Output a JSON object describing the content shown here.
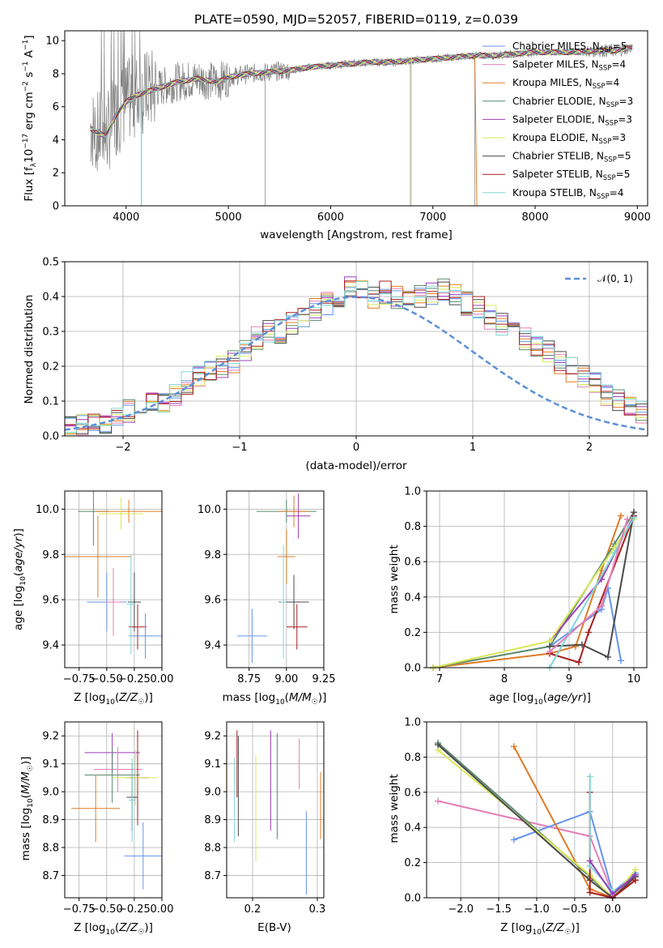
{
  "chart_data": [
    {
      "type": "line",
      "title": "PLATE=0590, MJD=52057, FIBERID=0119, z=0.039",
      "xlabel": "wavelength [Angstrom, rest frame]",
      "ylabel": "Flux [fλ10⁻¹⁷ erg cm⁻² s⁻¹ A⁻¹]",
      "xlim": [
        3400,
        9100
      ],
      "ylim": [
        0,
        10.6
      ],
      "xticks": [
        "4000",
        "5000",
        "6000",
        "7000",
        "8000",
        "9000"
      ],
      "yticks": [
        "0",
        "2",
        "4",
        "6",
        "8",
        "10"
      ],
      "observed_spectrum": {
        "color": "#808080",
        "x": [
          3650,
          3700,
          3800,
          3900,
          4000,
          4100,
          4200,
          4300,
          4400,
          4500,
          4600,
          4700,
          4800,
          4900,
          5000,
          5200,
          5400,
          5600,
          5800,
          6000,
          6200,
          6400,
          6600,
          6800,
          7000,
          7200,
          7400,
          7600,
          7800,
          8000,
          8200,
          8400,
          8600,
          8800,
          8950
        ],
        "y": [
          4.7,
          4.5,
          4.2,
          5.5,
          6.3,
          6.7,
          6.9,
          7.1,
          7.3,
          7.5,
          7.6,
          7.7,
          7.6,
          7.5,
          7.8,
          8.0,
          8.1,
          8.2,
          8.4,
          8.5,
          8.6,
          8.7,
          8.7,
          8.8,
          8.9,
          9.0,
          9.1,
          9.1,
          9.2,
          9.3,
          9.3,
          9.3,
          9.4,
          9.4,
          9.6
        ]
      },
      "series": [
        {
          "name": "Chabrier MILES, N_SSP=5",
          "color": "#6495ed"
        },
        {
          "name": "Salpeter MILES, N_SSP=4",
          "color": "#e57fb7"
        },
        {
          "name": "Kroupa MILES, N_SSP=4",
          "color": "#e07b24"
        },
        {
          "name": "Chabrier ELODIE, N_SSP=3",
          "color": "#5a8a6e"
        },
        {
          "name": "Salpeter ELODIE, N_SSP=3",
          "color": "#9e3cb8"
        },
        {
          "name": "Kroupa ELODIE, N_SSP=3",
          "color": "#d9e85a"
        },
        {
          "name": "Chabrier STELIB, N_SSP=5",
          "color": "#4a4a4a"
        },
        {
          "name": "Salpeter STELIB, N_SSP=5",
          "color": "#a81d1d"
        },
        {
          "name": "Kroupa STELIB, N_SSP=4",
          "color": "#7fd6d6"
        }
      ]
    },
    {
      "type": "histogram",
      "xlabel": "(data-model)/error",
      "ylabel": "Normed distribution",
      "xlim": [
        -2.5,
        2.5
      ],
      "ylim": [
        0,
        0.5
      ],
      "xticks": [
        "−2",
        "−1",
        "0",
        "1",
        "2"
      ],
      "yticks": [
        "0.0",
        "0.1",
        "0.2",
        "0.3",
        "0.4",
        "0.5"
      ],
      "bin_width": 0.1,
      "bin_start": -2.5,
      "base_values": [
        0.04,
        0.03,
        0.03,
        0.04,
        0.05,
        0.07,
        0.09,
        0.09,
        0.1,
        0.12,
        0.15,
        0.17,
        0.18,
        0.2,
        0.21,
        0.24,
        0.28,
        0.3,
        0.3,
        0.32,
        0.34,
        0.36,
        0.38,
        0.4,
        0.43,
        0.42,
        0.4,
        0.41,
        0.4,
        0.39,
        0.4,
        0.41,
        0.42,
        0.4,
        0.38,
        0.37,
        0.34,
        0.32,
        0.3,
        0.28,
        0.26,
        0.24,
        0.21,
        0.19,
        0.17,
        0.15,
        0.12,
        0.1,
        0.08,
        0.07,
        0.06,
        0.05,
        0.04,
        0.04,
        0.05,
        0.04,
        0.03,
        0.02,
        0.02,
        0.02
      ],
      "reference_curve": {
        "name": "𝒩(0, 1)",
        "color": "#5b8fd9",
        "style": "dashed"
      }
    },
    {
      "type": "errorbar",
      "xlabel": "Z [log₁₀(Z/Z☉)]",
      "ylabel": "age  [log₁₀(age/yr)]",
      "xlim": [
        -0.88,
        0.0
      ],
      "ylim": [
        9.3,
        10.08
      ],
      "xticks": [
        "−0.75",
        "−0.50",
        "−0.25",
        "0.00"
      ],
      "yticks": [
        "9.4",
        "9.6",
        "9.8",
        "10.0"
      ],
      "points": [
        {
          "x": -0.62,
          "y": 9.99,
          "xerr": 0.14,
          "yerr": 0.15,
          "color": "#5a8a6e"
        },
        {
          "x": -0.3,
          "y": 9.99,
          "xerr": 0.3,
          "yerr": 0.05,
          "color": "#e07b24"
        },
        {
          "x": -0.37,
          "y": 9.98,
          "xerr": 0.2,
          "yerr": 0.07,
          "color": "#d9e85a"
        },
        {
          "x": -0.58,
          "y": 9.79,
          "xerr": 0.3,
          "yerr": 0.18,
          "color": "#e07b24"
        },
        {
          "x": -0.5,
          "y": 9.59,
          "xerr": 0.18,
          "yerr": 0.13,
          "color": "#6495ed"
        },
        {
          "x": -0.44,
          "y": 9.59,
          "xerr": 0.07,
          "yerr": 0.15,
          "color": "#e57fb7"
        },
        {
          "x": -0.25,
          "y": 9.59,
          "xerr": 0.06,
          "yerr": 0.13,
          "color": "#4a4a4a"
        },
        {
          "x": -0.22,
          "y": 9.48,
          "xerr": 0.08,
          "yerr": 0.1,
          "color": "#a81d1d"
        },
        {
          "x": -0.15,
          "y": 9.44,
          "xerr": 0.15,
          "yerr": 0.1,
          "color": "#6495ed"
        },
        {
          "x": -0.28,
          "y": 9.58,
          "xerr": 0.04,
          "yerr": 0.22,
          "color": "#7fd6d6"
        }
      ]
    },
    {
      "type": "errorbar",
      "xlabel": "mass [log₁₀(M/M☉)]",
      "ylabel": "",
      "xlim": [
        8.6,
        9.25
      ],
      "ylim": [
        9.3,
        10.08
      ],
      "xticks": [
        "8.75",
        "9.00",
        "9.25"
      ],
      "yticks": [
        "9.4",
        "9.6",
        "9.8",
        "10.0"
      ],
      "points": [
        {
          "x": 9.0,
          "y": 9.99,
          "xerr": 0.2,
          "yerr": 0.05,
          "color": "#5a8a6e"
        },
        {
          "x": 9.05,
          "y": 9.99,
          "xerr": 0.1,
          "yerr": 0.07,
          "color": "#e07b24"
        },
        {
          "x": 9.08,
          "y": 9.97,
          "xerr": 0.08,
          "yerr": 0.1,
          "color": "#9e3cb8"
        },
        {
          "x": 9.0,
          "y": 9.79,
          "xerr": 0.06,
          "yerr": 0.12,
          "color": "#e07b24"
        },
        {
          "x": 9.05,
          "y": 9.59,
          "xerr": 0.1,
          "yerr": 0.12,
          "color": "#4a4a4a"
        },
        {
          "x": 9.07,
          "y": 9.48,
          "xerr": 0.07,
          "yerr": 0.1,
          "color": "#a81d1d"
        },
        {
          "x": 8.77,
          "y": 9.44,
          "xerr": 0.1,
          "yerr": 0.12,
          "color": "#6495ed"
        },
        {
          "x": 8.98,
          "y": 9.59,
          "xerr": 0.02,
          "yerr": 0.25,
          "color": "#7fd6d6"
        }
      ]
    },
    {
      "type": "line",
      "xlabel": "age  [log₁₀(age/yr)]",
      "ylabel": "mass weight",
      "xlim": [
        6.8,
        10.2
      ],
      "ylim": [
        0,
        1
      ],
      "xticks": [
        "7",
        "8",
        "9",
        "10"
      ],
      "yticks": [
        "0.0",
        "0.2",
        "0.4",
        "0.6",
        "0.8",
        "1.0"
      ],
      "series": [
        {
          "color": "#6495ed",
          "x": [
            8.7,
            9.5,
            9.6,
            9.8
          ],
          "y": [
            0.12,
            0.33,
            0.45,
            0.04
          ]
        },
        {
          "color": "#e07b24",
          "x": [
            6.9,
            8.7,
            9.1,
            9.5,
            9.8
          ],
          "y": [
            0.0,
            0.08,
            0.12,
            0.55,
            0.86
          ]
        },
        {
          "color": "#5a8a6e",
          "x": [
            6.9,
            8.7,
            9.7,
            10.0
          ],
          "y": [
            0.0,
            0.12,
            0.7,
            0.88
          ]
        },
        {
          "color": "#9e3cb8",
          "x": [
            8.7,
            9.5,
            10.0
          ],
          "y": [
            0.15,
            0.5,
            0.86
          ]
        },
        {
          "color": "#d9e85a",
          "x": [
            6.9,
            8.7,
            9.7,
            10.0
          ],
          "y": [
            0.0,
            0.15,
            0.68,
            0.84
          ]
        },
        {
          "color": "#4a4a4a",
          "x": [
            8.7,
            9.2,
            9.6,
            10.0
          ],
          "y": [
            0.12,
            0.13,
            0.06,
            0.88
          ]
        },
        {
          "color": "#a81d1d",
          "x": [
            8.7,
            9.15,
            9.3,
            10.0
          ],
          "y": [
            0.08,
            0.03,
            0.2,
            0.86
          ]
        },
        {
          "color": "#7fd6d6",
          "x": [
            8.7,
            9.7,
            10.0
          ],
          "y": [
            0.0,
            0.65,
            0.85
          ]
        },
        {
          "color": "#e57fb7",
          "x": [
            8.7,
            9.5,
            9.9
          ],
          "y": [
            0.09,
            0.35,
            0.84
          ]
        }
      ]
    },
    {
      "type": "errorbar",
      "xlabel": "Z [log₁₀(Z/Z☉)]",
      "ylabel": "mass [log₁₀(M/M☉)]",
      "xlim": [
        -0.88,
        0.0
      ],
      "ylim": [
        8.62,
        9.25
      ],
      "xticks": [
        "−0.75",
        "−0.50",
        "−0.25",
        "0.00"
      ],
      "yticks": [
        "8.7",
        "8.8",
        "8.9",
        "9.0",
        "9.1",
        "9.2"
      ],
      "points": [
        {
          "x": -0.45,
          "y": 9.14,
          "xerr": 0.25,
          "yerr": 0.07,
          "color": "#9e3cb8"
        },
        {
          "x": -0.4,
          "y": 9.08,
          "xerr": 0.22,
          "yerr": 0.08,
          "color": "#e57fb7"
        },
        {
          "x": -0.45,
          "y": 9.06,
          "xerr": 0.25,
          "yerr": 0.1,
          "color": "#5a8a6e"
        },
        {
          "x": -0.22,
          "y": 9.05,
          "xerr": 0.1,
          "yerr": 0.17,
          "color": "#a81d1d"
        },
        {
          "x": -0.24,
          "y": 9.05,
          "xerr": 0.2,
          "yerr": 0.1,
          "color": "#d9e85a"
        },
        {
          "x": -0.27,
          "y": 8.98,
          "xerr": 0.05,
          "yerr": 0.12,
          "color": "#4a4a4a"
        },
        {
          "x": -0.6,
          "y": 8.94,
          "xerr": 0.22,
          "yerr": 0.12,
          "color": "#e07b24"
        },
        {
          "x": -0.17,
          "y": 8.77,
          "xerr": 0.17,
          "yerr": 0.12,
          "color": "#6495ed"
        },
        {
          "x": -0.27,
          "y": 8.97,
          "xerr": 0.03,
          "yerr": 0.15,
          "color": "#7fd6d6"
        }
      ]
    },
    {
      "type": "errorbar",
      "xlabel": "E(B-V)",
      "ylabel": "",
      "xlim": [
        0.16,
        0.31
      ],
      "ylim": [
        8.62,
        9.25
      ],
      "xticks": [
        "0.2",
        "0.3"
      ],
      "yticks": [
        "8.7",
        "8.8",
        "8.9",
        "9.0",
        "9.1",
        "9.2"
      ],
      "points": [
        {
          "x": 0.176,
          "y": 9.1,
          "yerr": 0.12,
          "color": "#a81d1d"
        },
        {
          "x": 0.178,
          "y": 9.02,
          "yerr": 0.18,
          "color": "#4a4a4a"
        },
        {
          "x": 0.172,
          "y": 8.97,
          "yerr": 0.15,
          "color": "#7fd6d6"
        },
        {
          "x": 0.205,
          "y": 8.94,
          "yerr": 0.19,
          "color": "#d9e85a"
        },
        {
          "x": 0.228,
          "y": 9.04,
          "yerr": 0.18,
          "color": "#9e3cb8"
        },
        {
          "x": 0.238,
          "y": 9.02,
          "yerr": 0.19,
          "color": "#5a8a6e"
        },
        {
          "x": 0.272,
          "y": 9.1,
          "yerr": 0.09,
          "color": "#e57fb7"
        },
        {
          "x": 0.283,
          "y": 8.78,
          "yerr": 0.15,
          "color": "#6495ed"
        },
        {
          "x": 0.305,
          "y": 8.95,
          "yerr": 0.12,
          "color": "#e07b24"
        }
      ]
    },
    {
      "type": "line",
      "xlabel": "Z [log₁₀(Z/Z☉)]",
      "ylabel": "mass weight",
      "xlim": [
        -2.45,
        0.45
      ],
      "ylim": [
        0,
        1
      ],
      "xticks": [
        "−2.0",
        "−1.5",
        "−1.0",
        "−0.5",
        "0.0"
      ],
      "yticks": [
        "0.0",
        "0.2",
        "0.4",
        "0.6",
        "0.8",
        "1.0"
      ],
      "series": [
        {
          "color": "#e57fb7",
          "x": [
            -2.3,
            -0.3,
            0.0,
            0.3
          ],
          "y": [
            0.55,
            0.35,
            0.02,
            0.12
          ]
        },
        {
          "color": "#6495ed",
          "x": [
            -1.3,
            -0.3,
            0.0,
            0.3
          ],
          "y": [
            0.33,
            0.49,
            0.03,
            0.14
          ]
        },
        {
          "color": "#e07b24",
          "x": [
            -1.3,
            -0.3,
            0.0,
            0.3
          ],
          "y": [
            0.86,
            0.05,
            0.0,
            0.1
          ]
        },
        {
          "color": "#5a8a6e",
          "x": [
            -2.3,
            -0.3,
            0.0,
            0.3
          ],
          "y": [
            0.88,
            0.12,
            0.0,
            0.12
          ]
        },
        {
          "color": "#d9e85a",
          "x": [
            -2.3,
            -0.3,
            0.0,
            0.3
          ],
          "y": [
            0.84,
            0.13,
            0.0,
            0.16
          ]
        },
        {
          "color": "#4a4a4a",
          "x": [
            -2.3,
            -0.3,
            0.0,
            0.3
          ],
          "y": [
            0.87,
            0.1,
            0.0,
            0.12
          ]
        },
        {
          "color": "#a81d1d",
          "x": [
            -0.3,
            -0.3,
            0.0,
            0.3
          ],
          "y": [
            0.6,
            0.03,
            0.0,
            0.1
          ]
        },
        {
          "color": "#7fd6d6",
          "x": [
            -0.3,
            -0.3,
            0.0
          ],
          "y": [
            0.69,
            0.18,
            0.04
          ]
        },
        {
          "color": "#9e3cb8",
          "x": [
            -0.3,
            0.0,
            0.3
          ],
          "y": [
            0.21,
            0.02,
            0.13
          ]
        }
      ]
    }
  ]
}
